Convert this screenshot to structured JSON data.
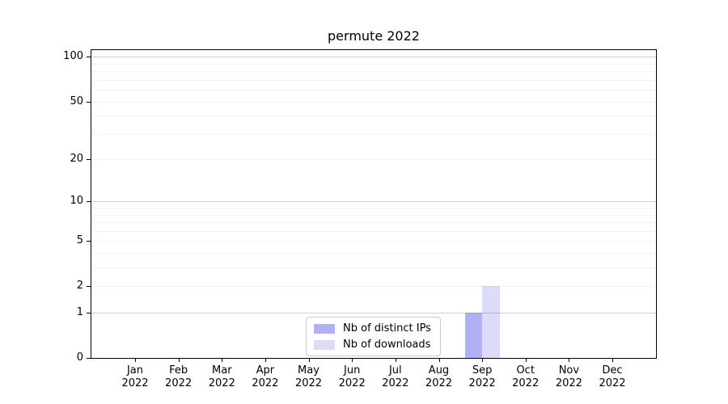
{
  "chart_data": {
    "type": "bar",
    "title": "permute 2022",
    "categories": [
      {
        "month": "Jan",
        "year": "2022"
      },
      {
        "month": "Feb",
        "year": "2022"
      },
      {
        "month": "Mar",
        "year": "2022"
      },
      {
        "month": "Apr",
        "year": "2022"
      },
      {
        "month": "May",
        "year": "2022"
      },
      {
        "month": "Jun",
        "year": "2022"
      },
      {
        "month": "Jul",
        "year": "2022"
      },
      {
        "month": "Aug",
        "year": "2022"
      },
      {
        "month": "Sep",
        "year": "2022"
      },
      {
        "month": "Oct",
        "year": "2022"
      },
      {
        "month": "Nov",
        "year": "2022"
      },
      {
        "month": "Dec",
        "year": "2022"
      }
    ],
    "series": [
      {
        "name": "Nb of distinct IPs",
        "color": "rgba(80,80,230,0.45)",
        "color_hex_on_white": "#b0b0f4",
        "values": [
          0,
          0,
          0,
          0,
          0,
          0,
          0,
          0,
          1,
          0,
          0,
          0
        ]
      },
      {
        "name": "Nb of downloads",
        "color": "rgba(80,80,230,0.2)",
        "color_hex_on_white": "#dcdcfa",
        "values": [
          0,
          0,
          0,
          0,
          0,
          0,
          0,
          0,
          2,
          0,
          0,
          0
        ]
      }
    ],
    "yaxis": {
      "scale": "log1p",
      "ylim": [
        0,
        111
      ],
      "ticks": [
        0,
        1,
        2,
        5,
        10,
        20,
        50,
        100
      ],
      "major_gridlines": [
        1,
        10,
        100
      ],
      "minor_gridlines": [
        2,
        3,
        4,
        5,
        6,
        7,
        8,
        9,
        20,
        30,
        40,
        50,
        60,
        70,
        80,
        90
      ]
    },
    "grid": {
      "major_color": "#cfcfcf",
      "minor_color": "#f2f2f2"
    },
    "legend_position": "lower center"
  }
}
